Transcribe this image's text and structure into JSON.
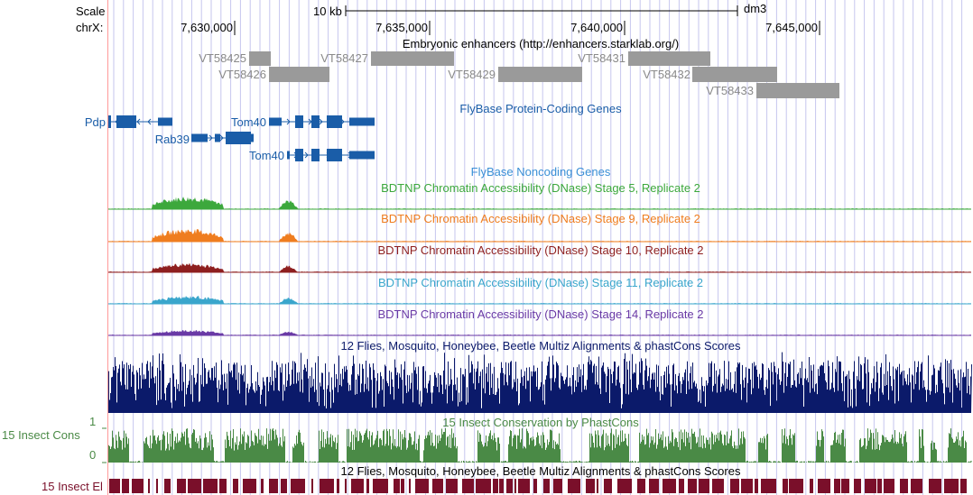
{
  "ruler": {
    "scale_label": "Scale",
    "chrom_label": "chrX:",
    "scalebar_label": "10 kb",
    "assembly_label": "dm3",
    "positions": [
      "7,630,000",
      "7,635,000",
      "7,640,000",
      "7,645,000"
    ]
  },
  "tracks": {
    "enhancers": {
      "title": "Embryonic enhancers (http://enhancers.starklab.org/)",
      "items": [
        "VT58425",
        "VT58426",
        "VT58427",
        "VT58429",
        "VT58431",
        "VT58432",
        "VT58433"
      ]
    },
    "protein_genes": {
      "title": "FlyBase Protein-Coding Genes",
      "genes": [
        "Pdp",
        "Rab39",
        "Tom40",
        "Tom40"
      ]
    },
    "noncoding_genes": {
      "title": "FlyBase Noncoding Genes"
    },
    "dnase": [
      {
        "title": "BDTNP Chromatin Accessibility (DNase) Stage 5, Replicate 2",
        "color": "#3ca83c"
      },
      {
        "title": "BDTNP Chromatin Accessibility (DNase) Stage 9, Replicate 2",
        "color": "#ef7d1f"
      },
      {
        "title": "BDTNP Chromatin Accessibility (DNase) Stage 10, Replicate 2",
        "color": "#8e1f1f"
      },
      {
        "title": "BDTNP Chromatin Accessibility (DNase) Stage 11, Replicate 2",
        "color": "#3aa6cc"
      },
      {
        "title": "BDTNP Chromatin Accessibility (DNase) Stage 14, Replicate 2",
        "color": "#6a3aa6"
      }
    ],
    "multiz": {
      "title": "12 Flies, Mosquito, Honeybee, Beetle Multiz Alignments & phastCons Scores",
      "color": "#0b1a6a"
    },
    "insect_cons": {
      "title": "15 Insect Conservation by PhastCons",
      "side_label": "15 Insect Cons",
      "axis_max": "1",
      "axis_min": "0",
      "color": "#4a8a46"
    },
    "insect_el": {
      "title": "12 Flies, Mosquito, Honeybee, Beetle Multiz Alignments & phastCons Scores",
      "side_label": "15 Insect El",
      "color": "#7a0f2a"
    }
  },
  "colors": {
    "grid": "#c6c6ee",
    "left_border": "#ff9a9a",
    "gene": "#1a5da8",
    "enhancer": "#9a9a9a"
  }
}
